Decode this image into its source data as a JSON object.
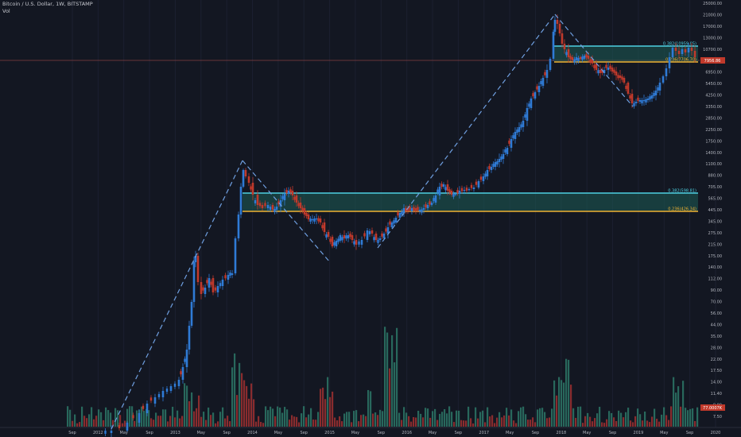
{
  "header": {
    "symbol_line": "Bitcoin / U.S. Dollar, 1W, BITSTAMP",
    "indicator": "Vol"
  },
  "price_axis": {
    "ticks": [
      "25000.00",
      "21000.00",
      "17000.00",
      "13000.00",
      "10700.00",
      "8750.00",
      "6950.00",
      "5450.00",
      "4250.00",
      "3350.00",
      "2850.00",
      "2250.00",
      "1750.00",
      "1400.00",
      "1100.00",
      "880.00",
      "705.00",
      "565.00",
      "445.00",
      "345.00",
      "275.00",
      "215.00",
      "175.00",
      "140.00",
      "112.00",
      "90.00",
      "70.00",
      "56.00",
      "44.00",
      "35.00",
      "28.00",
      "22.00",
      "17.50",
      "14.00",
      "11.40",
      "9.00",
      "7.50"
    ],
    "current_price": "7956.86",
    "current_volume": "77.0007K"
  },
  "time_axis": {
    "labels": [
      "Sep",
      "2012",
      "May",
      "Sep",
      "2013",
      "May",
      "Sep",
      "2014",
      "May",
      "Sep",
      "2015",
      "May",
      "Sep",
      "2016",
      "May",
      "Sep",
      "2017",
      "May",
      "Sep",
      "2018",
      "May",
      "Sep",
      "2019",
      "May",
      "Sep",
      "2020"
    ]
  },
  "fib_levels": {
    "upper_zone_top": "0.382(10959.05)",
    "upper_zone_bottom": "0.236(7706.70)",
    "lower_zone_top": "0.382(598.81)",
    "lower_zone_bottom": "0.236(426.34)"
  },
  "colors": {
    "background": "#131722",
    "up_candle": "#2f7bd6",
    "down_candle": "#c0392b",
    "fib_top_line": "#4dd0e1",
    "fib_bottom_line": "#f0b232",
    "zone_fill": "#1e5c55",
    "dashed_line": "#6f9fe0",
    "price_tag": "#c0392b",
    "vol_up": "#2e7d6b",
    "vol_down": "#a83232"
  }
}
